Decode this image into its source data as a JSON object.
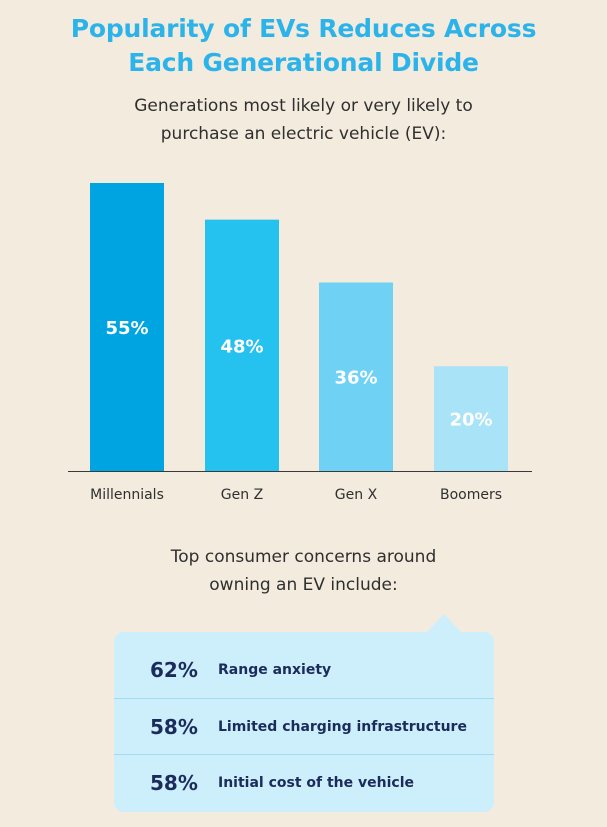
{
  "chart_data": {
    "type": "bar",
    "title": "Popularity of EVs Reduces Across Each Generational Divide",
    "subtitle": "Generations most likely or very likely to purchase an electric vehicle (EV):",
    "categories": [
      "Millennials",
      "Gen Z",
      "Gen X",
      "Boomers"
    ],
    "values": [
      55,
      48,
      36,
      20
    ],
    "value_labels": [
      "55%",
      "48%",
      "36%",
      "20%"
    ],
    "colors": [
      "#00a4e0",
      "#25c1ef",
      "#6fd2f5",
      "#a9e3f8"
    ],
    "ylim": [
      0,
      55
    ],
    "grid": false,
    "legend": "none"
  },
  "title_lines": [
    "Popularity of EVs Reduces Across",
    "Each Generational Divide"
  ],
  "subtitle_lines": [
    "Generations most likely or very likely to",
    "purchase an electric vehicle (EV):"
  ],
  "concerns": {
    "heading_lines": [
      "Top consumer concerns around",
      "owning an EV include:"
    ],
    "items": [
      {
        "pct": "62%",
        "label": "Range anxiety"
      },
      {
        "pct": "58%",
        "label": "Limited charging infrastructure"
      },
      {
        "pct": "58%",
        "label": "Initial cost of the vehicle"
      }
    ]
  }
}
